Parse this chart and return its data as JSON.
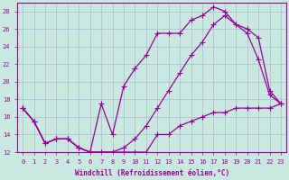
{
  "xlabel": "Windchill (Refroidissement éolien,°C)",
  "bg_color": "#c8e8e0",
  "grid_color": "#aabbcc",
  "line_color": "#990099",
  "xlim": [
    -0.5,
    23.5
  ],
  "ylim": [
    12,
    29
  ],
  "yticks": [
    12,
    14,
    16,
    18,
    20,
    22,
    24,
    26,
    28
  ],
  "xticks": [
    0,
    1,
    2,
    3,
    4,
    5,
    6,
    7,
    8,
    9,
    10,
    11,
    12,
    13,
    14,
    15,
    16,
    17,
    18,
    19,
    20,
    21,
    22,
    23
  ],
  "series1_x": [
    0,
    1,
    2,
    3,
    4,
    5,
    6,
    7,
    8,
    9,
    10,
    11,
    12,
    13,
    14,
    15,
    16,
    17,
    18,
    19,
    20,
    21,
    22,
    23
  ],
  "series1_y": [
    17,
    15.5,
    13,
    13.5,
    13.5,
    12.5,
    12,
    12,
    12,
    12,
    12,
    12,
    14,
    14,
    15,
    15.5,
    16,
    16.5,
    16.5,
    17,
    17,
    17,
    17,
    17.5
  ],
  "series2_x": [
    0,
    1,
    2,
    3,
    4,
    5,
    6,
    7,
    8,
    9,
    10,
    11,
    12,
    13,
    14,
    15,
    16,
    17,
    18,
    19,
    20,
    21,
    22,
    23
  ],
  "series2_y": [
    17,
    15.5,
    13,
    13.5,
    13.5,
    12.5,
    12,
    17.5,
    14,
    19.5,
    21.5,
    23,
    25.5,
    25.5,
    25.5,
    27,
    27.5,
    28.5,
    28,
    26.5,
    25.5,
    22.5,
    18.5,
    17.5
  ],
  "series3_x": [
    0,
    1,
    2,
    3,
    4,
    5,
    6,
    7,
    8,
    9,
    10,
    11,
    12,
    13,
    14,
    15,
    16,
    17,
    18,
    19,
    20,
    21,
    22,
    23
  ],
  "series3_y": [
    17,
    15.5,
    13,
    13.5,
    13.5,
    12.5,
    12,
    12,
    12,
    12.5,
    13.5,
    15,
    17,
    19,
    21,
    23,
    24.5,
    26.5,
    27.5,
    26.5,
    26,
    25,
    19,
    17.5
  ]
}
